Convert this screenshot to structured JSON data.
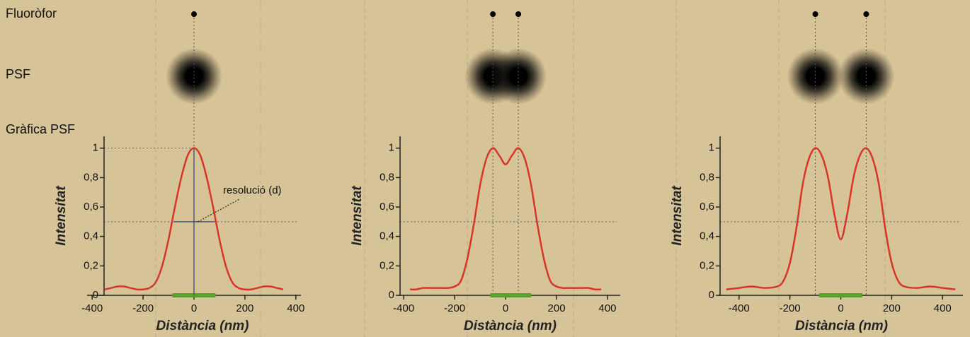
{
  "row_labels": {
    "fluorophore": "Fluoròfor",
    "psf": "PSF",
    "graph": "Gràfica PSF"
  },
  "chart_data": [
    {
      "type": "line",
      "ylabel": "Intensitat",
      "xlabel": "Distància (nm)",
      "color": "#d8352a",
      "x": [
        -350,
        -325,
        -300,
        -275,
        -250,
        -225,
        -200,
        -175,
        -150,
        -125,
        -100,
        -75,
        -50,
        -25,
        0,
        25,
        50,
        75,
        100,
        125,
        150,
        175,
        200,
        225,
        250,
        275,
        300,
        325,
        350
      ],
      "values": [
        0.04,
        0.05,
        0.06,
        0.06,
        0.05,
        0.04,
        0.04,
        0.05,
        0.09,
        0.2,
        0.38,
        0.6,
        0.8,
        0.95,
        1,
        0.95,
        0.8,
        0.6,
        0.38,
        0.2,
        0.09,
        0.05,
        0.04,
        0.04,
        0.05,
        0.06,
        0.06,
        0.05,
        0.04
      ],
      "xlim": [
        -420,
        420
      ],
      "ylim": [
        0,
        1.08
      ],
      "xticks": [
        -400,
        -200,
        0,
        200,
        400
      ],
      "yticks": [
        0,
        {
          "value": 0.2,
          "label": "0,2"
        },
        {
          "value": 0.4,
          "label": "0,4"
        },
        {
          "value": 0.6,
          "label": "0,6"
        },
        {
          "value": 0.8,
          "label": "0,8"
        },
        1
      ],
      "fluorophores": [
        0
      ],
      "guides": [
        1,
        0.5
      ],
      "fwhm": [
        -80,
        80
      ],
      "resolution_bar": [
        -85,
        85
      ],
      "bar_color": "#5aa02c",
      "annotation": "resolució (d)"
    },
    {
      "type": "line",
      "ylabel": "Intensitat",
      "xlabel": "Distància (nm)",
      "color": "#d8352a",
      "x": [
        -375,
        -350,
        -325,
        -300,
        -275,
        -250,
        -225,
        -200,
        -175,
        -150,
        -125,
        -100,
        -75,
        -50,
        -25,
        0,
        25,
        50,
        75,
        100,
        125,
        150,
        175,
        200,
        225,
        250,
        275,
        300,
        325,
        350,
        375
      ],
      "values": [
        0.04,
        0.04,
        0.05,
        0.05,
        0.05,
        0.05,
        0.05,
        0.06,
        0.1,
        0.25,
        0.48,
        0.75,
        0.93,
        1,
        0.95,
        0.89,
        0.95,
        1,
        0.93,
        0.75,
        0.48,
        0.25,
        0.1,
        0.06,
        0.05,
        0.05,
        0.05,
        0.05,
        0.05,
        0.04,
        0.04
      ],
      "xlim": [
        -420,
        450
      ],
      "ylim": [
        0,
        1.08
      ],
      "xticks": [
        -400,
        -200,
        0,
        200,
        400
      ],
      "yticks": [
        0,
        {
          "value": 0.2,
          "label": "0,2"
        },
        {
          "value": 0.4,
          "label": "0,4"
        },
        {
          "value": 0.6,
          "label": "0,6"
        },
        {
          "value": 0.8,
          "label": "0,8"
        },
        1
      ],
      "fluorophores": [
        -50,
        50
      ],
      "guides": [
        0.5
      ],
      "resolution_bar": [
        -60,
        100
      ],
      "bar_color": "#5aa02c"
    },
    {
      "type": "line",
      "ylabel": "Intensitat",
      "xlabel": "Distància (nm)",
      "color": "#d8352a",
      "x": [
        -450,
        -400,
        -350,
        -300,
        -250,
        -225,
        -200,
        -175,
        -150,
        -125,
        -100,
        -75,
        -50,
        -25,
        0,
        25,
        50,
        75,
        100,
        125,
        150,
        175,
        200,
        225,
        250,
        300,
        350,
        400,
        450
      ],
      "values": [
        0.04,
        0.05,
        0.06,
        0.05,
        0.06,
        0.1,
        0.22,
        0.45,
        0.75,
        0.93,
        1,
        0.95,
        0.8,
        0.55,
        0.38,
        0.55,
        0.8,
        0.95,
        1,
        0.93,
        0.75,
        0.45,
        0.22,
        0.1,
        0.06,
        0.05,
        0.06,
        0.05,
        0.04
      ],
      "xlim": [
        -480,
        480
      ],
      "ylim": [
        0,
        1.08
      ],
      "xticks": [
        -400,
        -200,
        0,
        200,
        400
      ],
      "yticks": [
        0,
        {
          "value": 0.2,
          "label": "0,2"
        },
        {
          "value": 0.4,
          "label": "0,4"
        },
        {
          "value": 0.6,
          "label": "0,6"
        },
        {
          "value": 0.8,
          "label": "0,8"
        },
        1
      ],
      "fluorophores": [
        -100,
        100
      ],
      "guides": [
        0.5
      ],
      "resolution_bar": [
        -85,
        85
      ],
      "bar_color": "#5aa02c"
    }
  ]
}
